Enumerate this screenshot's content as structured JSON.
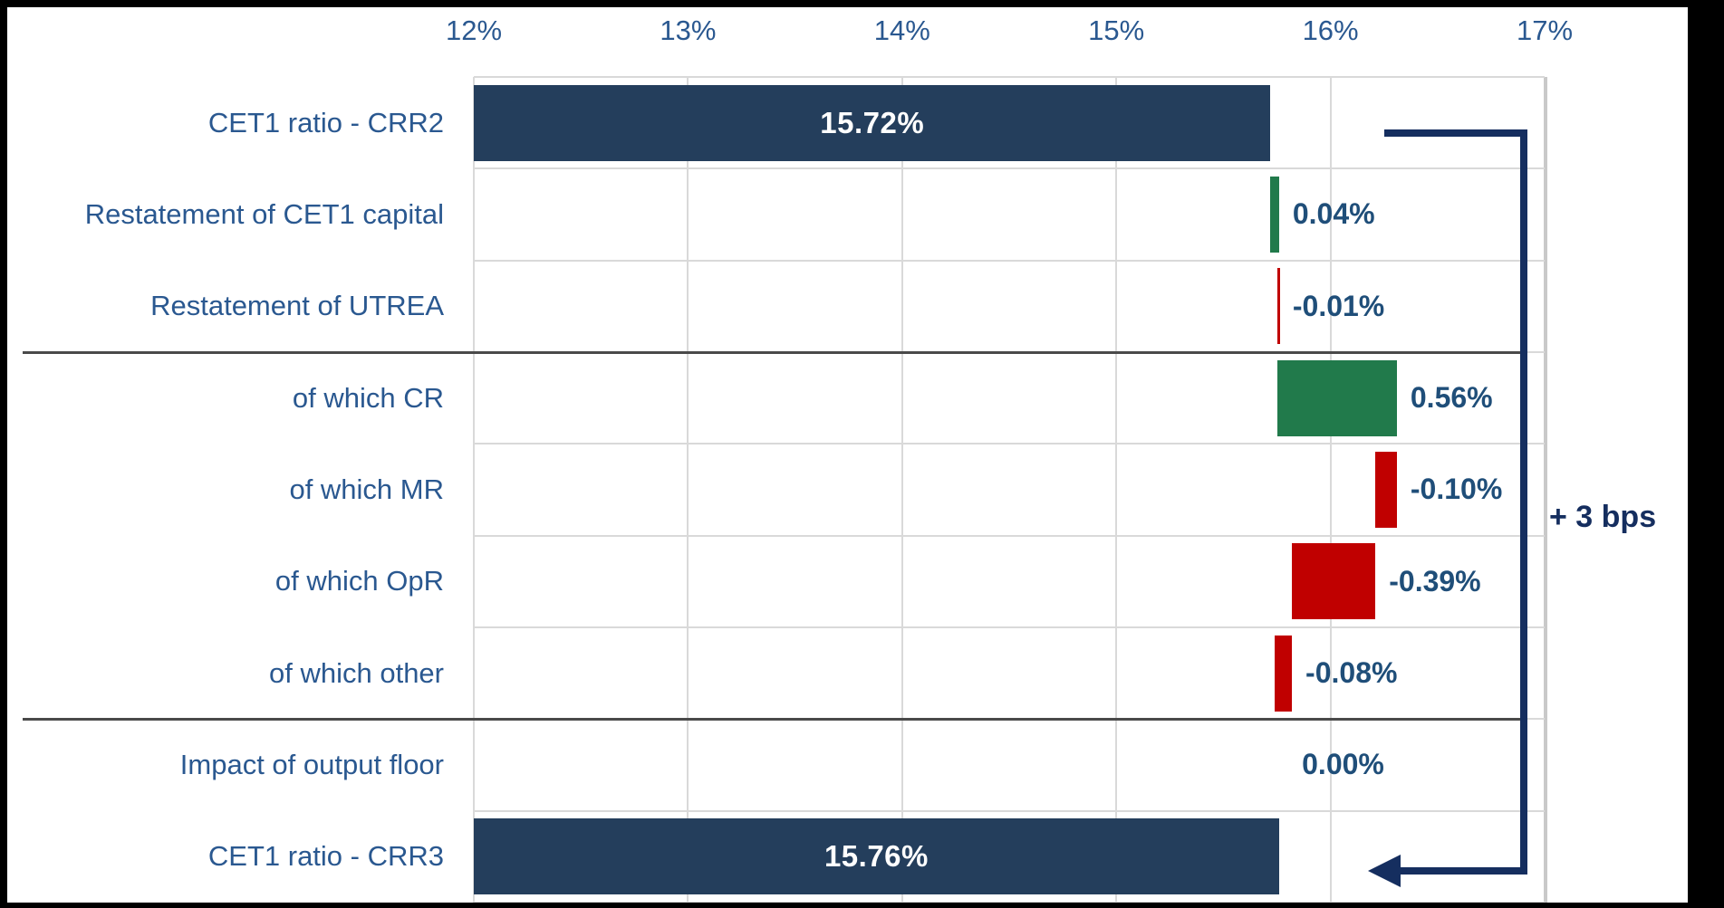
{
  "chart_data": {
    "type": "bar",
    "subtype": "horizontal-waterfall",
    "title": "",
    "xlabel": "",
    "ylabel": "",
    "x_axis": {
      "min": 12,
      "max": 17,
      "unit": "%",
      "ticks": [
        "12%",
        "13%",
        "14%",
        "15%",
        "16%",
        "17%"
      ],
      "tick_values": [
        12,
        13,
        14,
        15,
        16,
        17
      ],
      "grid": true,
      "position": "top"
    },
    "categories": [
      "CET1 ratio - CRR2",
      "Restatement of CET1 capital",
      "Restatement of UTREA",
      "of which CR",
      "of which MR",
      "of which OpR",
      "of which other",
      "Impact of output floor",
      "CET1 ratio - CRR3"
    ],
    "rows": [
      {
        "category": "CET1 ratio - CRR2",
        "label": "15.72%",
        "value": 15.72,
        "from": 12.0,
        "to": 15.72,
        "color": "navy",
        "label_pos": "inside"
      },
      {
        "category": "Restatement of CET1 capital",
        "label": "0.04%",
        "value": 0.04,
        "from": 15.72,
        "to": 15.76,
        "color": "green",
        "label_pos": "outside"
      },
      {
        "category": "Restatement of UTREA",
        "label": "-0.01%",
        "value": -0.01,
        "from": 15.76,
        "to": 15.75,
        "color": "red",
        "label_pos": "outside"
      },
      {
        "category": "of which CR",
        "label": "0.56%",
        "value": 0.56,
        "from": 15.75,
        "to": 16.31,
        "color": "green",
        "label_pos": "outside"
      },
      {
        "category": "of which MR",
        "label": "-0.10%",
        "value": -0.1,
        "from": 16.31,
        "to": 16.21,
        "color": "red",
        "label_pos": "outside"
      },
      {
        "category": "of which OpR",
        "label": "-0.39%",
        "value": -0.39,
        "from": 16.21,
        "to": 15.82,
        "color": "red",
        "label_pos": "outside"
      },
      {
        "category": "of which other",
        "label": "-0.08%",
        "value": -0.08,
        "from": 15.82,
        "to": 15.74,
        "color": "red",
        "label_pos": "outside"
      },
      {
        "category": "Impact of output floor",
        "label": "0.00%",
        "value": 0.0,
        "from": 15.74,
        "to": 15.74,
        "color": "none",
        "label_pos": "outside"
      },
      {
        "category": "CET1 ratio - CRR3",
        "label": "15.76%",
        "value": 15.76,
        "from": 12.0,
        "to": 15.76,
        "color": "navy",
        "label_pos": "inside"
      }
    ],
    "separators_after_rows": [
      2,
      6
    ],
    "annotation": {
      "text": "+ 3 bps"
    },
    "legend": "none",
    "colors": {
      "navy": "#243E5C",
      "green": "#217A4B",
      "red": "#C00000",
      "axis_text": "#2A5890",
      "category_text": "#2A5890",
      "value_text": "#1F4E79",
      "inside_label_text": "#FFFFFF",
      "arrow": "#152E5F",
      "gridline": "#D9D9D9",
      "separator": "#4A4A4A",
      "frame": "#000000",
      "background": "#FFFFFF"
    }
  }
}
